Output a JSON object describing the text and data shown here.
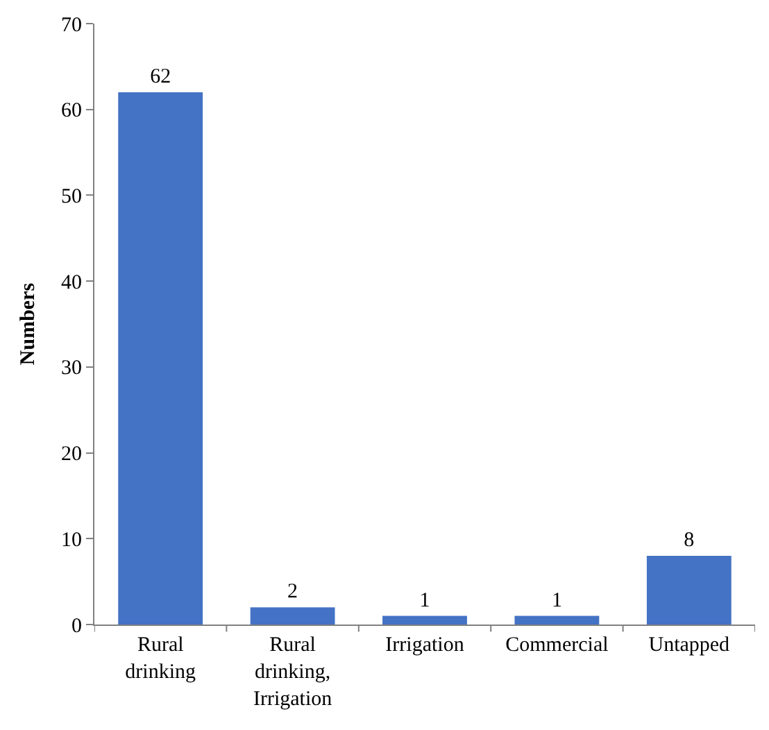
{
  "chart_data": {
    "type": "bar",
    "ylabel": "Numbers",
    "categories": [
      "Rural drinking",
      "Rural drinking, Irrigation",
      "Irrigation",
      "Commercial",
      "Untapped"
    ],
    "values": [
      62,
      2,
      1,
      1,
      8
    ],
    "color": "#4472c4",
    "ylim": [
      0,
      70
    ],
    "yticks": [
      0,
      10,
      20,
      30,
      40,
      50,
      60,
      70
    ],
    "data_labels": true
  }
}
